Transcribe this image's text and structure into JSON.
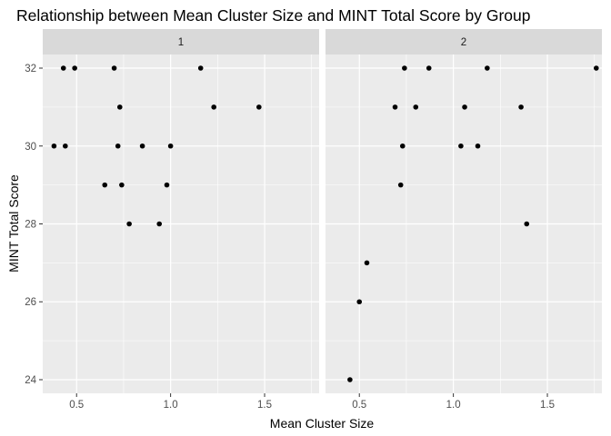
{
  "chart_data": {
    "type": "scatter",
    "title": "Relationship between Mean Cluster Size and MINT Total Score by Group",
    "xlabel": "Mean Cluster Size",
    "ylabel": "MINT Total Score",
    "xlim": [
      0.32,
      1.79
    ],
    "ylim": [
      23.65,
      32.35
    ],
    "x_ticks": [
      0.5,
      1.0,
      1.5
    ],
    "x_tick_labels": [
      "0.5",
      "1.0",
      "1.5"
    ],
    "y_ticks": [
      24,
      26,
      28,
      30,
      32
    ],
    "y_tick_labels": [
      "24",
      "26",
      "28",
      "30",
      "32"
    ],
    "grid": true,
    "legend": "none",
    "colors": {
      "panel": "#ebebeb",
      "strip": "#d9d9d9",
      "grid": "#ffffff",
      "point": "#000000"
    },
    "facets": [
      {
        "label": "1",
        "points": [
          {
            "x": 0.38,
            "y": 30
          },
          {
            "x": 0.43,
            "y": 32
          },
          {
            "x": 0.44,
            "y": 30
          },
          {
            "x": 0.49,
            "y": 32
          },
          {
            "x": 0.65,
            "y": 29
          },
          {
            "x": 0.7,
            "y": 32
          },
          {
            "x": 0.72,
            "y": 30
          },
          {
            "x": 0.73,
            "y": 31
          },
          {
            "x": 0.74,
            "y": 29
          },
          {
            "x": 0.78,
            "y": 28
          },
          {
            "x": 0.85,
            "y": 30
          },
          {
            "x": 0.94,
            "y": 28
          },
          {
            "x": 0.98,
            "y": 29
          },
          {
            "x": 1.0,
            "y": 30
          },
          {
            "x": 1.16,
            "y": 32
          },
          {
            "x": 1.23,
            "y": 31
          },
          {
            "x": 1.47,
            "y": 31
          }
        ]
      },
      {
        "label": "2",
        "points": [
          {
            "x": 0.45,
            "y": 24
          },
          {
            "x": 0.5,
            "y": 26
          },
          {
            "x": 0.54,
            "y": 27
          },
          {
            "x": 0.69,
            "y": 31
          },
          {
            "x": 0.72,
            "y": 29
          },
          {
            "x": 0.73,
            "y": 30
          },
          {
            "x": 0.74,
            "y": 32
          },
          {
            "x": 0.8,
            "y": 31
          },
          {
            "x": 0.87,
            "y": 32
          },
          {
            "x": 1.04,
            "y": 30
          },
          {
            "x": 1.06,
            "y": 31
          },
          {
            "x": 1.13,
            "y": 30
          },
          {
            "x": 1.18,
            "y": 32
          },
          {
            "x": 1.36,
            "y": 31
          },
          {
            "x": 1.39,
            "y": 28
          },
          {
            "x": 1.76,
            "y": 32
          }
        ]
      }
    ]
  }
}
